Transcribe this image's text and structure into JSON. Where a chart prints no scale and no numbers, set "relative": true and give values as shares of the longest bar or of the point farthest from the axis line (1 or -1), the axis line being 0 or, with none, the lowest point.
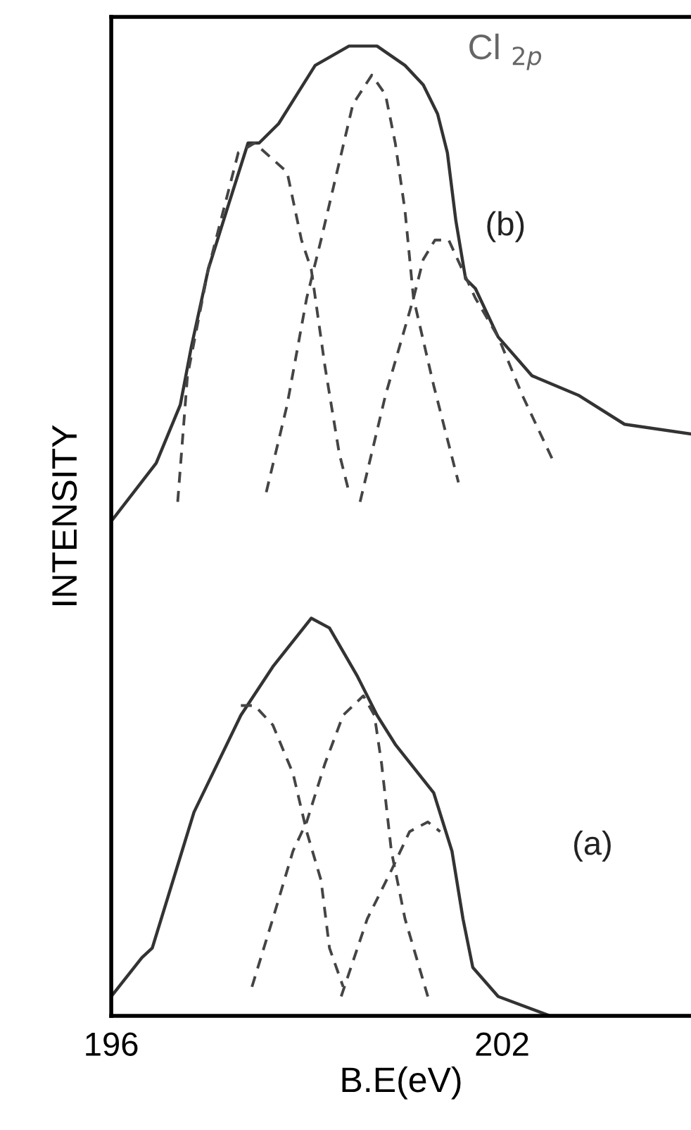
{
  "chart_data": {
    "type": "line",
    "xlabel": "B.E(eV)",
    "ylabel": "INTENSITY",
    "relative": true,
    "xlim": [
      196,
      204.9
    ],
    "xticks": [
      196,
      202
    ],
    "tick_labels": "x",
    "grid": false,
    "marker": "none",
    "annotations": [
      "Cl $_{2p}$",
      "(b)",
      "(a)"
    ],
    "series": [
      {
        "line_style": "solid",
        "color": "#333333",
        "x": [
          196.0,
          196.69,
          197.06,
          197.23,
          197.49,
          197.77,
          198.1,
          198.27,
          198.57,
          198.85,
          199.13,
          199.65,
          200.08,
          200.51,
          200.79,
          201.01,
          201.16,
          201.29,
          201.44,
          201.59,
          201.94,
          202.46,
          203.17,
          203.88,
          204.9
        ],
        "values": [
          0.51,
          0.57,
          0.63,
          0.69,
          0.77,
          0.83,
          0.9,
          0.9,
          0.92,
          0.95,
          0.98,
          1.0,
          1.0,
          0.98,
          0.96,
          0.93,
          0.89,
          0.82,
          0.76,
          0.75,
          0.7,
          0.66,
          0.64,
          0.61,
          0.6
        ]
      },
      {
        "line_style": "dashed",
        "color": "#444444",
        "x": [
          197.02,
          197.17,
          197.49,
          197.95,
          198.2,
          198.7,
          198.92,
          199.07,
          199.28,
          199.5,
          199.65
        ],
        "values": [
          0.53,
          0.66,
          0.77,
          0.89,
          0.9,
          0.87,
          0.8,
          0.77,
          0.67,
          0.58,
          0.54
        ]
      },
      {
        "line_style": "dashed",
        "color": "#444444",
        "x": [
          198.38,
          198.7,
          199.0,
          199.22,
          199.5,
          199.71,
          200.0,
          200.21,
          200.36,
          200.51,
          200.64,
          200.95,
          201.33
        ],
        "values": [
          0.54,
          0.63,
          0.74,
          0.8,
          0.88,
          0.94,
          0.97,
          0.95,
          0.9,
          0.83,
          0.74,
          0.65,
          0.55
        ]
      },
      {
        "line_style": "dashed",
        "color": "#444444",
        "x": [
          199.82,
          200.21,
          200.64,
          200.79,
          200.97,
          201.18,
          201.59,
          201.94,
          202.31,
          202.8
        ],
        "values": [
          0.53,
          0.64,
          0.74,
          0.78,
          0.8,
          0.8,
          0.74,
          0.7,
          0.64,
          0.57
        ]
      },
      {
        "line_style": "solid",
        "color": "#333333",
        "x": [
          196.0,
          196.47,
          196.63,
          197.27,
          197.99,
          198.48,
          199.07,
          199.35,
          199.78,
          200.08,
          200.36,
          200.95,
          201.23,
          201.4,
          201.55,
          201.94,
          202.74,
          204.9
        ],
        "values": [
          0.02,
          0.06,
          0.07,
          0.21,
          0.31,
          0.36,
          0.41,
          0.4,
          0.35,
          0.31,
          0.28,
          0.23,
          0.17,
          0.1,
          0.05,
          0.02,
          0.0,
          0.0
        ]
      },
      {
        "line_style": "dashed",
        "color": "#444444",
        "x": [
          197.99,
          198.2,
          198.48,
          198.79,
          199.0,
          199.22,
          199.35,
          199.56
        ],
        "values": [
          0.32,
          0.32,
          0.3,
          0.25,
          0.19,
          0.14,
          0.07,
          0.03
        ]
      },
      {
        "line_style": "dashed",
        "color": "#444444",
        "x": [
          198.16,
          198.48,
          198.79,
          199.0,
          199.28,
          199.56,
          199.87,
          200.04,
          200.15,
          200.3,
          200.51,
          200.86
        ],
        "values": [
          0.03,
          0.1,
          0.17,
          0.2,
          0.26,
          0.31,
          0.33,
          0.31,
          0.26,
          0.17,
          0.1,
          0.02
        ]
      },
      {
        "line_style": "dashed",
        "color": "#444444",
        "x": [
          199.53,
          199.93,
          200.3,
          200.58,
          200.86,
          201.05
        ],
        "values": [
          0.02,
          0.1,
          0.15,
          0.19,
          0.2,
          0.19
        ]
      }
    ]
  }
}
